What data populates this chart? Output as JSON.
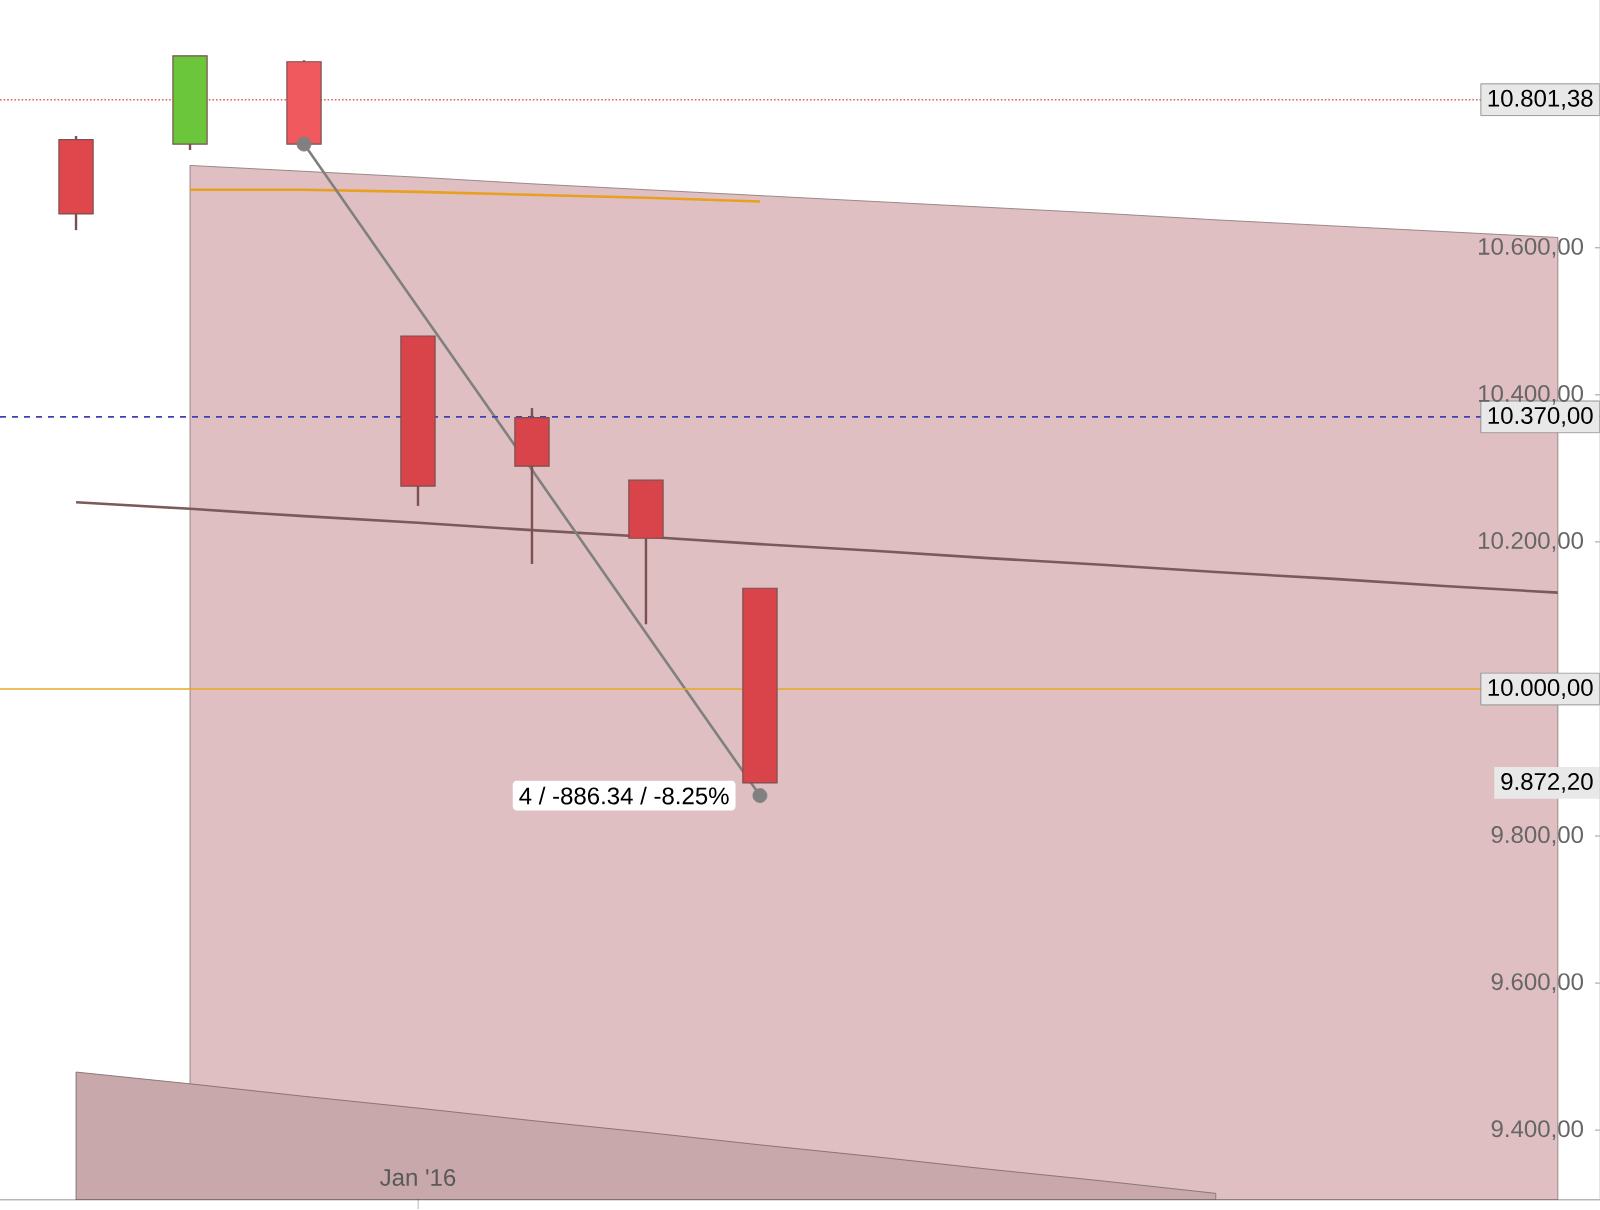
{
  "chart_data": {
    "type": "candlestick",
    "categories": [
      null,
      null,
      null,
      "Jan '16",
      null,
      null,
      null,
      null,
      null,
      null,
      null,
      null,
      null,
      null
    ],
    "ohlc": [
      [
        10747,
        10752,
        10624,
        10646
      ],
      [
        10741,
        10861,
        10733,
        10861
      ],
      [
        10853,
        10855,
        10739,
        10741
      ],
      [
        10480,
        10480,
        10249,
        10276
      ],
      [
        10369,
        10382,
        10170,
        10303
      ],
      [
        10284,
        10284,
        10088,
        10205
      ],
      [
        10137,
        10137,
        9872.2,
        9872.2
      ],
      null,
      null,
      null,
      null,
      null,
      null,
      null
    ],
    "colors": [
      "#e0474d",
      "#6cc63c",
      "#f05a5f",
      "#d9434a",
      "#d9434a",
      "#d9434a",
      "#d9434a",
      null,
      null,
      null,
      null,
      null,
      null,
      null
    ],
    "series": [
      {
        "type": "area",
        "color": "#dfbfc2",
        "values": [
          null,
          10712,
          10704,
          10696,
          10687,
          10679,
          10671,
          10663,
          10655,
          10647,
          10638,
          10630,
          10622,
          10614
        ]
      },
      {
        "type": "area",
        "color": "#c9a8ab",
        "values": [
          9479,
          9463,
          9446,
          9430,
          9413,
          9397,
          9380,
          9364,
          9347,
          9331,
          9314,
          null,
          null,
          null
        ]
      },
      {
        "type": "line",
        "color": "#7a5a5a",
        "values": [
          10254,
          10245,
          10235,
          10226,
          10216,
          10207,
          10197,
          10188,
          10178,
          10169,
          10159,
          10150,
          10140,
          10131
        ]
      },
      {
        "type": "line",
        "color": "#e8a020",
        "values": [
          null,
          10679,
          10679,
          10676,
          10672,
          10668,
          10663,
          null,
          null,
          null,
          null,
          null,
          null,
          null
        ]
      },
      {
        "type": "line",
        "color": "#808080",
        "values": [
          null,
          null,
          10741,
          10519,
          10298,
          10076,
          9855,
          null,
          null,
          null,
          null,
          null,
          null,
          null
        ]
      },
      {
        "type": "scatter",
        "color": "#808080",
        "marker": "circle",
        "values": [
          null,
          null,
          10741,
          null,
          null,
          null,
          9855,
          null,
          null,
          null,
          null,
          null,
          null,
          null
        ]
      }
    ],
    "ylim": [
      9305,
      10937
    ],
    "yticks": [
      {
        "value": 9400,
        "label": "9.400,00"
      },
      {
        "value": 9600,
        "label": "9.600,00"
      },
      {
        "value": 9800,
        "label": "9.800,00"
      },
      {
        "value": 10200,
        "label": "10.200,00"
      },
      {
        "value": 10400,
        "label": "10.400,00"
      },
      {
        "value": 10600,
        "label": "10.600,00"
      }
    ],
    "ref_lines": [
      {
        "axis": "y",
        "value": 10801.38,
        "label": "10.801,38",
        "color": "#e06060",
        "line_style": "dotted"
      },
      {
        "axis": "y",
        "value": 10370,
        "label": "10.370,00",
        "color": "#4040b0",
        "line_style": "dashed"
      },
      {
        "axis": "y",
        "value": 10000,
        "label": "10.000,00",
        "color": "#e8a820",
        "line_style": "solid"
      }
    ],
    "annotations": [
      "4 / -886.34 / -8.25%",
      "9.872,20"
    ]
  }
}
